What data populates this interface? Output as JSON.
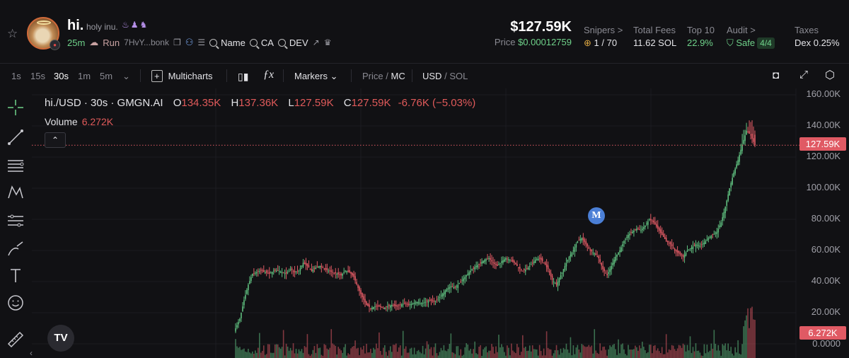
{
  "token": {
    "symbol": "hi.",
    "name": "holy inu.",
    "age": "25m",
    "run_label": "Run",
    "address": "7HvY...bonk",
    "search_links": [
      "Name",
      "CA",
      "DEV"
    ]
  },
  "market": {
    "market_cap": "$127.59K",
    "price_label": "Price",
    "price": "$0.00012759"
  },
  "stats": {
    "snipers": {
      "label": "Snipers >",
      "value": "1 / 70"
    },
    "total_fees": {
      "label": "Total Fees",
      "value": "11.62 SOL"
    },
    "top10": {
      "label": "Top 10",
      "value": "22.9%"
    },
    "audit": {
      "label": "Audit >",
      "value": "Safe",
      "badge": "4/4"
    },
    "taxes": {
      "label": "Taxes",
      "value": "Dex 0.25%"
    }
  },
  "toolbar": {
    "intervals": [
      "1s",
      "15s",
      "30s",
      "1m",
      "5m"
    ],
    "active_interval": "30s",
    "multicharts": "Multicharts",
    "markers": "Markers",
    "price_opt": "Price",
    "mc_opt": "MC",
    "usd_opt": "USD",
    "sol_opt": "SOL",
    "slash": "/"
  },
  "legend": {
    "title": "hi./USD · 30s · GMGN.AI",
    "o_label": "O",
    "o": "134.35K",
    "h_label": "H",
    "h": "137.36K",
    "l_label": "L",
    "l": "127.59K",
    "c_label": "C",
    "c": "127.59K",
    "change": "-6.76K (−5.03%)",
    "volume_label": "Volume",
    "volume": "6.272K"
  },
  "axis": {
    "ticks": [
      "160.00K",
      "140.00K",
      "120.00K",
      "100.00K",
      "80.00K",
      "60.00K",
      "40.00K",
      "20.00K",
      "0.0000"
    ],
    "last_price": "127.59K",
    "last_volume": "6.272K"
  },
  "marker_letter": "M",
  "tv_logo": "TV",
  "colors": {
    "up": "#5fbf7f",
    "down": "#e05a64",
    "bg": "#111114",
    "accent": "#6fd28a"
  },
  "chart_data": {
    "type": "candlestick",
    "ylim": [
      0,
      160000
    ],
    "ticks": [
      0,
      20000,
      40000,
      60000,
      80000,
      100000,
      120000,
      140000,
      160000
    ],
    "last_price": 127590,
    "last_volume": 6272,
    "series_close_k": [
      10,
      16,
      28,
      38,
      45,
      46,
      47,
      46,
      45,
      47,
      47,
      46,
      45,
      48,
      46,
      47,
      52,
      50,
      47,
      49,
      50,
      48,
      47,
      46,
      45,
      44,
      47,
      46,
      43,
      36,
      30,
      25,
      23,
      24,
      24,
      23,
      24,
      25,
      24,
      25,
      26,
      25,
      26,
      27,
      26,
      27,
      28,
      27,
      29,
      32,
      35,
      37,
      36,
      39,
      42,
      45,
      48,
      50,
      52,
      54,
      55,
      52,
      50,
      53,
      55,
      54,
      52,
      49,
      47,
      48,
      51,
      54,
      55,
      52,
      48,
      41,
      38,
      44,
      50,
      56,
      60,
      66,
      68,
      64,
      60,
      58,
      55,
      48,
      44,
      50,
      56,
      60,
      66,
      70,
      72,
      74,
      73,
      76,
      80,
      78,
      74,
      70,
      66,
      64,
      60,
      58,
      56,
      60,
      62,
      64,
      63,
      65,
      68,
      70,
      72,
      78,
      88,
      100,
      110,
      118,
      128,
      137,
      134,
      127.59
    ]
  }
}
